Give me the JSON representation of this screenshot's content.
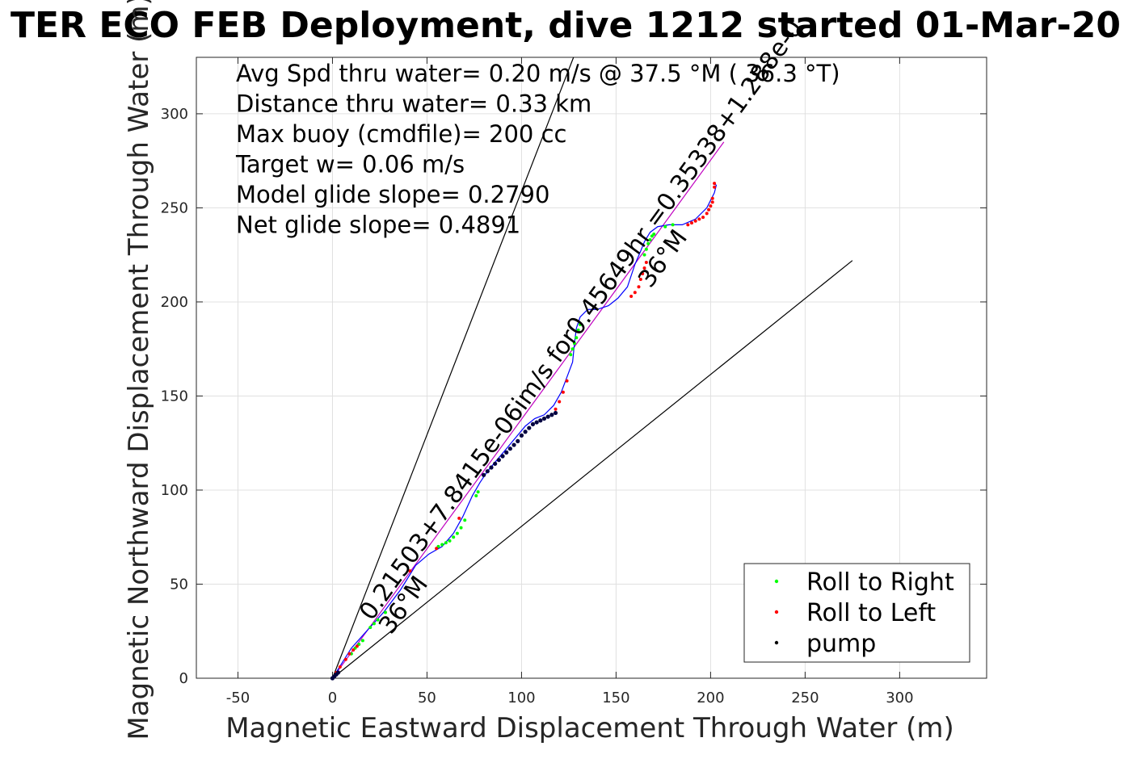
{
  "chart_data": {
    "type": "scatter",
    "title": "TER ECO FEB Deployment, dive 1212 started 01-Mar-20",
    "xlabel": "Magnetic Eastward Displacement Through Water (m)",
    "ylabel": "Magnetic Northward Displacement Through Water (m)",
    "xlim": [
      -72,
      346
    ],
    "ylim": [
      0,
      330
    ],
    "xticks": [
      -50,
      0,
      50,
      100,
      150,
      200,
      250,
      300
    ],
    "yticks": [
      0,
      50,
      100,
      150,
      200,
      250,
      300
    ],
    "grid": true,
    "legend_position": "bottom-right",
    "annotations": [
      "Avg Spd thru water=  0.20 m/s @  37.5 °M ( 36.3 °T)",
      "Distance thru water=  0.33 km",
      "Max buoy (cmdfile)= 200 cc",
      "Target w= 0.06 m/s",
      "Model glide slope= 0.2790",
      "Net glide slope= 0.4891"
    ],
    "heading_line_labels": [
      "0.21503+7.8415e-06im/s for0.45649hr =0.35338+1.288e-0",
      "36°M",
      "36°M"
    ],
    "heading_lines": [
      {
        "name": "steep",
        "x": [
          0,
          127.5
        ],
        "y": [
          0,
          330
        ]
      },
      {
        "name": "shallow",
        "x": [
          0,
          275
        ],
        "y": [
          0,
          222
        ]
      },
      {
        "name": "average",
        "x": [
          0,
          207
        ],
        "y": [
          0,
          285
        ]
      }
    ],
    "track": {
      "x": [
        0,
        5,
        10,
        18,
        27,
        36,
        44,
        51,
        58,
        64,
        69,
        74,
        78,
        82,
        87,
        92,
        97,
        102,
        107,
        112,
        117,
        121,
        124,
        127,
        128,
        129,
        131,
        135,
        140,
        146,
        151,
        156,
        160,
        163,
        165,
        168,
        172,
        178,
        185,
        192,
        198,
        202,
        203,
        202
      ],
      "y": [
        0,
        8,
        16,
        25,
        35,
        47,
        60,
        66,
        70,
        77,
        86,
        97,
        104,
        110,
        116,
        122,
        128,
        134,
        138,
        140,
        145,
        152,
        160,
        168,
        178,
        186,
        192,
        196,
        196,
        198,
        202,
        208,
        220,
        227,
        232,
        237,
        240,
        241,
        241,
        244,
        250,
        258,
        262,
        263
      ]
    },
    "series": [
      {
        "name": "Roll to Right",
        "color": "#00ff00",
        "x": [
          10,
          12,
          14,
          16,
          20,
          22,
          24,
          28,
          56,
          58,
          60,
          62,
          64,
          66,
          68,
          70,
          76,
          77,
          126,
          127,
          128,
          129,
          130,
          131,
          165,
          166,
          167,
          168,
          169,
          170,
          176,
          180
        ],
        "y": [
          13,
          16,
          18,
          20,
          27,
          29,
          31,
          35,
          70,
          71,
          72,
          73,
          75,
          77,
          80,
          84,
          97,
          99,
          172,
          175,
          178,
          181,
          185,
          188,
          225,
          228,
          231,
          233,
          235,
          236,
          240,
          241
        ]
      },
      {
        "name": "Roll to Left",
        "color": "#ff0000",
        "x": [
          2,
          4,
          7,
          9,
          11,
          13,
          41,
          55,
          67,
          118,
          120,
          122,
          124,
          158,
          160,
          162,
          163,
          164,
          165,
          166,
          188,
          190,
          192,
          194,
          196,
          198,
          199,
          200,
          201,
          201,
          202,
          202
        ],
        "y": [
          3,
          6,
          10,
          13,
          15,
          17,
          57,
          69,
          85,
          143,
          147,
          152,
          158,
          203,
          205,
          208,
          212,
          215,
          218,
          221,
          241,
          242,
          243,
          244,
          245,
          247,
          249,
          251,
          253,
          255,
          261,
          263
        ]
      },
      {
        "name": "pump",
        "color": "#000000",
        "x": [
          0,
          1,
          2,
          3,
          80,
          82,
          84,
          86,
          88,
          90,
          92,
          94,
          96,
          98,
          100,
          102,
          104,
          106,
          108,
          110,
          112,
          114,
          116,
          118
        ],
        "y": [
          0,
          1,
          2,
          3,
          108,
          110,
          112,
          114,
          116,
          118,
          120,
          122,
          124,
          126,
          129,
          131,
          133,
          135,
          136,
          137,
          138,
          139,
          140,
          141
        ]
      }
    ],
    "legend": {
      "entries": [
        "Roll to Right",
        "Roll to Left",
        "pump"
      ]
    },
    "colors": {
      "track": "#0000ff",
      "average": "#c000c0",
      "heading": "#000000",
      "pump_marker": "#000040"
    }
  }
}
